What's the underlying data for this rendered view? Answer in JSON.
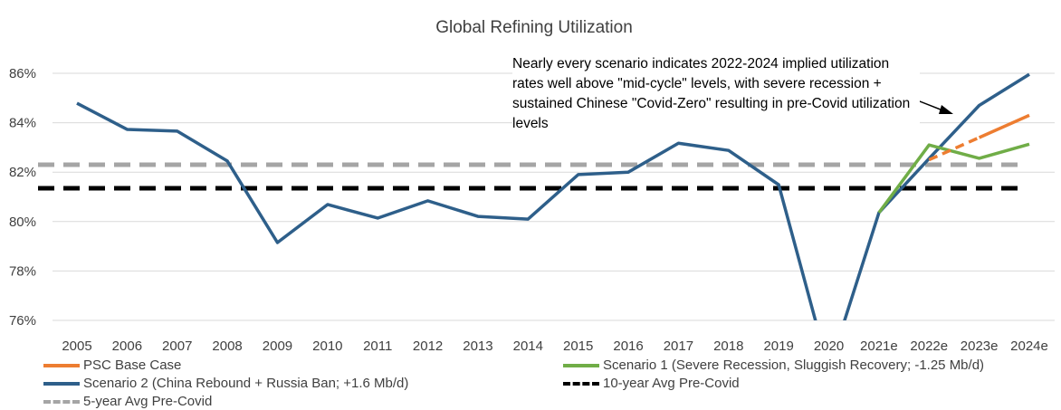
{
  "chart_data": {
    "type": "line",
    "title": "Global Refining Utilization",
    "categories": [
      "2005",
      "2006",
      "2007",
      "2008",
      "2009",
      "2010",
      "2011",
      "2012",
      "2013",
      "2014",
      "2015",
      "2016",
      "2017",
      "2018",
      "2019",
      "2020",
      "2021e",
      "2022e",
      "2023e",
      "2024e"
    ],
    "ylim": [
      76,
      86
    ],
    "yticks": [
      76,
      78,
      80,
      82,
      84,
      86
    ],
    "ytick_labels": [
      "76%",
      "78%",
      "80%",
      "82%",
      "84%",
      "86%"
    ],
    "grid": "horizontal",
    "legend_position": "bottom",
    "series": [
      {
        "name": "PSC Base Case",
        "color": "#ED7D31",
        "style": "dashed-then-solid",
        "values": [
          null,
          null,
          null,
          null,
          null,
          null,
          null,
          null,
          null,
          null,
          null,
          null,
          null,
          null,
          null,
          null,
          null,
          82.5,
          83.4,
          84.3
        ]
      },
      {
        "name": "Scenario 1 (Severe Recession, Sluggish Recovery; -1.25 Mb/d)",
        "color": "#70AD47",
        "style": "solid",
        "values": [
          null,
          null,
          null,
          null,
          null,
          null,
          null,
          null,
          null,
          null,
          null,
          null,
          null,
          null,
          null,
          null,
          80.36,
          83.1,
          82.56,
          83.13
        ]
      },
      {
        "name": "Scenario 2 (China Rebound + Russia Ban; +1.6 Mb/d)",
        "color": "#2E5F8A",
        "style": "solid",
        "values": [
          84.79,
          83.73,
          83.66,
          82.45,
          79.15,
          80.69,
          80.14,
          80.84,
          80.21,
          80.1,
          81.9,
          82.0,
          83.17,
          82.88,
          81.49,
          74.0,
          80.36,
          82.55,
          84.7,
          85.96
        ]
      },
      {
        "name": "10-year Avg Pre-Covid",
        "color": "#000000",
        "style": "dashed",
        "constant": 81.35
      },
      {
        "name": "5-year Avg Pre-Covid",
        "color": "#A5A5A5",
        "style": "dashed",
        "constant": 82.3
      }
    ],
    "annotation": "Nearly every scenario indicates 2022-2024 implied utilization rates well above \"mid-cycle\" levels, with severe recession + sustained Chinese \"Covid-Zero\" resulting in pre-Covid utilization levels"
  }
}
